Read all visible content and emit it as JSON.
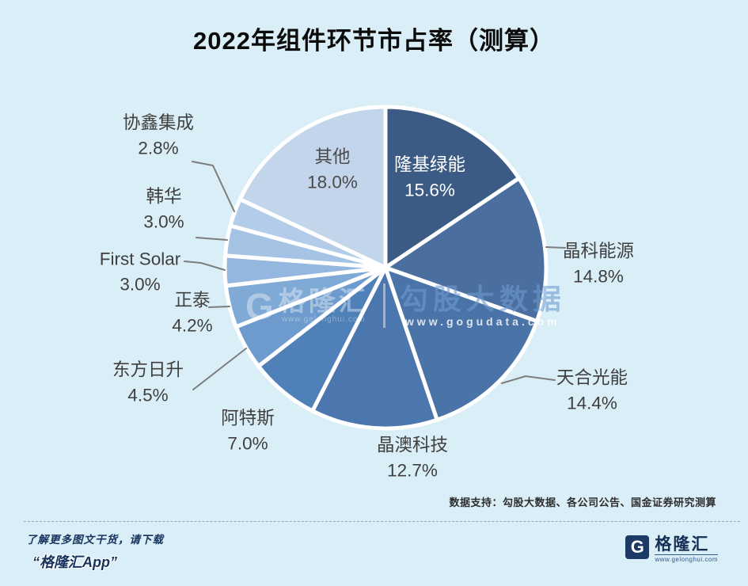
{
  "title": "2022年组件环节市占率（测算）",
  "chart_data": {
    "type": "pie",
    "title": "2022年组件环节市占率（测算）",
    "unit": "%",
    "start_angle_deg": 0,
    "clockwise": true,
    "legend_position": "none",
    "segments": [
      {
        "label": "隆基绿能",
        "value": 15.6,
        "color": "#3b5b84",
        "label_inside": true,
        "label_color": "#ffffff"
      },
      {
        "label": "晶科能源",
        "value": 14.8,
        "color": "#4a6f9f"
      },
      {
        "label": "天合光能",
        "value": 14.4,
        "color": "#4a74a7"
      },
      {
        "label": "晶澳科技",
        "value": 12.7,
        "color": "#4b77ae"
      },
      {
        "label": "阿特斯",
        "value": 7.0,
        "color": "#5080b8"
      },
      {
        "label": "东方日升",
        "value": 4.5,
        "color": "#6e9bcd"
      },
      {
        "label": "正泰",
        "value": 4.2,
        "color": "#80aad6"
      },
      {
        "label": "First Solar",
        "value": 3.0,
        "color": "#93b7de"
      },
      {
        "label": "韩华",
        "value": 3.0,
        "color": "#a5c3e4"
      },
      {
        "label": "协鑫集成",
        "value": 2.8,
        "color": "#b3cce9"
      },
      {
        "label": "其他",
        "value": 18.0,
        "color": "#c3d5ea",
        "label_inside": true,
        "label_color": "#4a4a4a"
      }
    ]
  },
  "source_note": "数据支持：勾股大数据、各公司公告、国金证券研究测算",
  "watermark": {
    "brand_initial": "G",
    "brand": "格隆汇",
    "brand_url": "www.gelonghui.com",
    "partner": "勾股大数据",
    "partner_url": "www.gogudata.com"
  },
  "footer": {
    "promo_line1": "了解更多图文干货，请下载",
    "promo_line2": "“格隆汇App”",
    "logo_initial": "G",
    "logo_name": "格隆汇",
    "logo_url": "www.gelonghui.com"
  }
}
